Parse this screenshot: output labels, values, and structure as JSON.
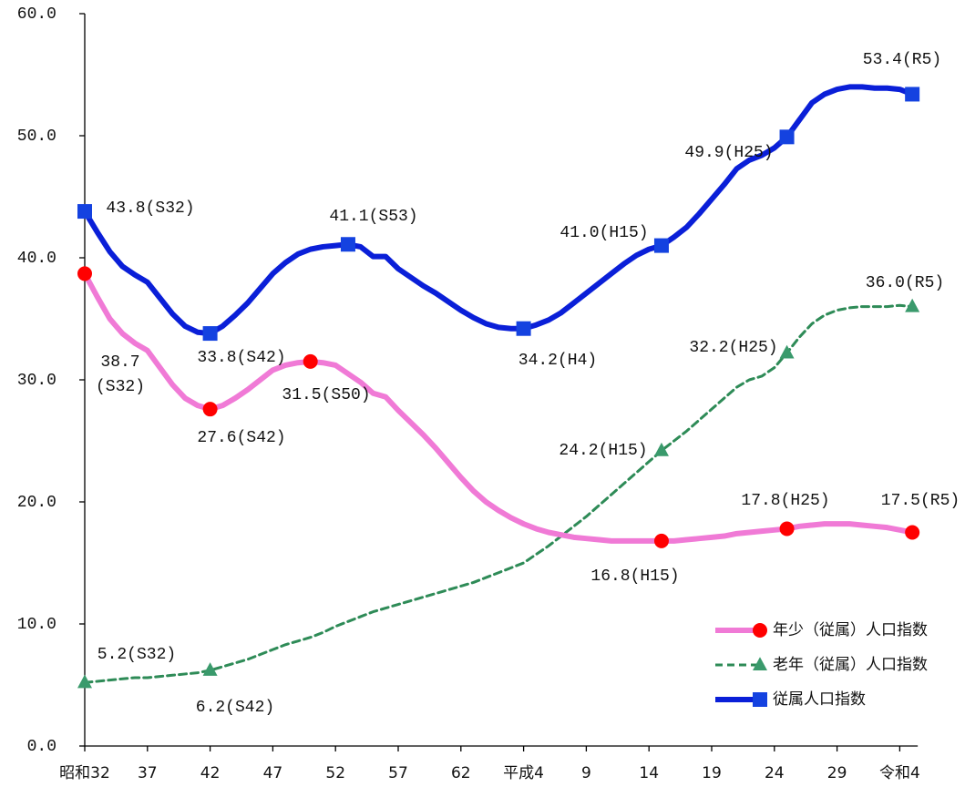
{
  "chart_data": {
    "type": "line",
    "categories": [
      "昭和32",
      null,
      null,
      null,
      null,
      "37",
      null,
      null,
      null,
      null,
      "42",
      null,
      null,
      null,
      null,
      "47",
      null,
      null,
      null,
      null,
      "52",
      null,
      null,
      null,
      null,
      "57",
      null,
      null,
      null,
      null,
      "62",
      null,
      null,
      null,
      null,
      "平成4",
      null,
      null,
      null,
      null,
      "9",
      null,
      null,
      null,
      null,
      "14",
      null,
      null,
      null,
      null,
      "19",
      null,
      null,
      null,
      null,
      "24",
      null,
      null,
      null,
      null,
      "29",
      null,
      null,
      null,
      null,
      "令和4",
      null
    ],
    "ylim": [
      0,
      60
    ],
    "yticks": [
      {
        "value": 0,
        "label": "0.0"
      },
      {
        "value": 10,
        "label": "10.0"
      },
      {
        "value": 20,
        "label": "20.0"
      },
      {
        "value": 30,
        "label": "30.0"
      },
      {
        "value": 40,
        "label": "40.0"
      },
      {
        "value": 50,
        "label": "50.0"
      },
      {
        "value": 60,
        "label": "60.0"
      }
    ],
    "legend": "lower right",
    "series": [
      {
        "name": "年少（従属）人口指数",
        "color": "#f07ad6",
        "marker": "circle",
        "marker_color": "#ff0000",
        "dashed": false,
        "values": [
          38.7,
          36.8,
          35.0,
          33.8,
          33.0,
          32.4,
          31.0,
          29.6,
          28.5,
          27.9,
          27.6,
          27.9,
          28.5,
          29.2,
          30.0,
          30.8,
          31.2,
          31.4,
          31.5,
          31.4,
          31.2,
          30.5,
          29.8,
          28.9,
          28.6,
          27.5,
          26.5,
          25.5,
          24.4,
          23.2,
          22.0,
          20.9,
          20.0,
          19.3,
          18.7,
          18.2,
          17.8,
          17.5,
          17.3,
          17.1,
          17.0,
          16.9,
          16.8,
          16.8,
          16.8,
          16.8,
          16.8,
          16.8,
          16.9,
          17.0,
          17.1,
          17.2,
          17.4,
          17.5,
          17.6,
          17.7,
          17.8,
          18.0,
          18.1,
          18.2,
          18.2,
          18.2,
          18.1,
          18.0,
          17.9,
          17.7,
          17.5
        ],
        "value_labels": [
          "38.7\n(S32)",
          null,
          null,
          null,
          null,
          null,
          null,
          null,
          null,
          null,
          "27.6(S42)",
          null,
          null,
          null,
          null,
          null,
          null,
          null,
          "31.5(S50)",
          null,
          null,
          null,
          null,
          null,
          null,
          null,
          null,
          null,
          null,
          null,
          null,
          null,
          null,
          null,
          null,
          null,
          null,
          null,
          null,
          null,
          null,
          null,
          null,
          null,
          null,
          null,
          "16.8(H15)",
          null,
          null,
          null,
          null,
          null,
          null,
          null,
          null,
          null,
          "17.8(H25)",
          null,
          null,
          null,
          null,
          null,
          null,
          null,
          null,
          null,
          "17.5(R5)"
        ]
      },
      {
        "name": "老年（従属）人口指数",
        "color": "#2e8b57",
        "marker": "triangle",
        "marker_color": "#3a9a6c",
        "dashed": true,
        "values": [
          5.2,
          5.3,
          5.4,
          5.5,
          5.6,
          5.6,
          5.7,
          5.8,
          5.9,
          6.0,
          6.2,
          6.5,
          6.8,
          7.1,
          7.5,
          7.9,
          8.3,
          8.6,
          8.9,
          9.3,
          9.8,
          10.2,
          10.6,
          11.0,
          11.3,
          11.6,
          11.9,
          12.2,
          12.5,
          12.8,
          13.1,
          13.4,
          13.8,
          14.2,
          14.6,
          15.0,
          15.7,
          16.4,
          17.2,
          18.0,
          18.8,
          19.7,
          20.6,
          21.5,
          22.4,
          23.3,
          24.2,
          25.0,
          25.8,
          26.7,
          27.6,
          28.5,
          29.4,
          30.0,
          30.3,
          31.0,
          32.2,
          33.5,
          34.6,
          35.3,
          35.7,
          35.9,
          36.0,
          36.0,
          36.0,
          36.1,
          36.0
        ],
        "value_labels": [
          "5.2(S32)",
          null,
          null,
          null,
          null,
          null,
          null,
          null,
          null,
          null,
          "6.2(S42)",
          null,
          null,
          null,
          null,
          null,
          null,
          null,
          null,
          null,
          null,
          null,
          null,
          null,
          null,
          null,
          null,
          null,
          null,
          null,
          null,
          null,
          null,
          null,
          null,
          null,
          null,
          null,
          null,
          null,
          null,
          null,
          null,
          null,
          null,
          null,
          "24.2(H15)",
          null,
          null,
          null,
          null,
          null,
          null,
          null,
          null,
          null,
          "32.2(H25)",
          null,
          null,
          null,
          null,
          null,
          null,
          null,
          null,
          null,
          "36.0(R5)"
        ]
      },
      {
        "name": "従属人口指数",
        "color": "#0a1fd8",
        "marker": "square",
        "marker_color": "#1442e0",
        "dashed": false,
        "values": [
          43.8,
          42.1,
          40.5,
          39.3,
          38.6,
          38.0,
          36.7,
          35.4,
          34.4,
          33.9,
          33.8,
          34.4,
          35.3,
          36.3,
          37.5,
          38.7,
          39.6,
          40.3,
          40.7,
          40.9,
          41.0,
          41.1,
          40.9,
          40.1,
          40.1,
          39.1,
          38.4,
          37.7,
          37.1,
          36.4,
          35.7,
          35.1,
          34.6,
          34.3,
          34.2,
          34.2,
          34.5,
          34.9,
          35.5,
          36.3,
          37.1,
          37.9,
          38.7,
          39.5,
          40.2,
          40.7,
          41.0,
          41.7,
          42.5,
          43.6,
          44.8,
          46.0,
          47.3,
          48.0,
          48.4,
          49.0,
          49.9,
          51.3,
          52.7,
          53.4,
          53.8,
          54.0,
          54.0,
          53.9,
          53.9,
          53.8,
          53.4
        ],
        "value_labels": [
          "43.8(S32)",
          null,
          null,
          null,
          null,
          null,
          null,
          null,
          null,
          null,
          "33.8(S42)",
          null,
          null,
          null,
          null,
          null,
          null,
          null,
          null,
          null,
          null,
          "41.1(S53)",
          null,
          null,
          null,
          null,
          null,
          null,
          null,
          null,
          null,
          null,
          null,
          null,
          null,
          "34.2(H4)",
          null,
          null,
          null,
          null,
          null,
          null,
          null,
          null,
          null,
          null,
          "41.0(H15)",
          null,
          null,
          null,
          null,
          null,
          null,
          null,
          null,
          null,
          "49.9(H25)",
          null,
          null,
          null,
          null,
          null,
          null,
          null,
          null,
          null,
          "53.4(R5)"
        ]
      }
    ]
  }
}
